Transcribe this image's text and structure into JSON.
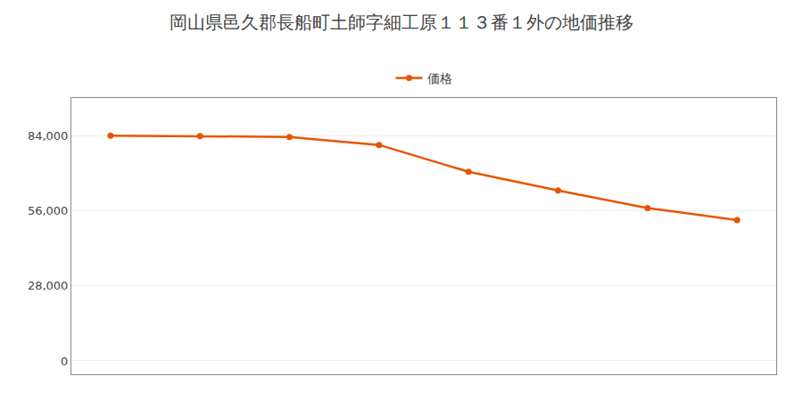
{
  "chart_data": {
    "type": "line",
    "title": "岡山県邑久郡長船町土師字細工原１１３番１外の地価推移",
    "categories": [
      null,
      null,
      null,
      null,
      null,
      null,
      null,
      null
    ],
    "series": [
      {
        "name": "価格",
        "color": "#e85500",
        "marker": "circle",
        "values": [
          84000,
          83800,
          83500,
          80500,
          70500,
          63500,
          57000,
          52500
        ]
      }
    ],
    "ylim": [
      -5000,
      98000
    ],
    "yticks": [
      0,
      {
        "value": 28000,
        "label": "28,000"
      },
      {
        "value": 56000,
        "label": "56,000"
      },
      {
        "value": 84000,
        "label": "84,000"
      }
    ],
    "grid": true,
    "legend": "top",
    "tick_labels": "y"
  }
}
